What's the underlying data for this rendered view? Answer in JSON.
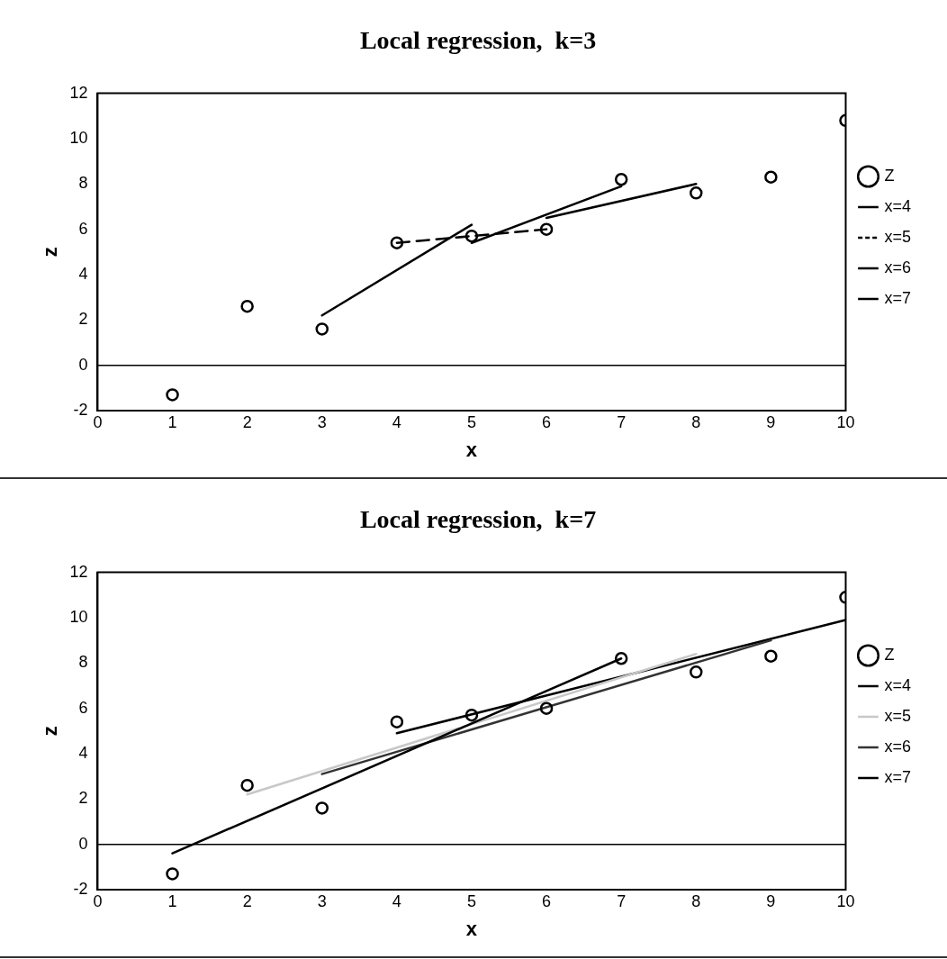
{
  "chart_data": [
    {
      "type": "line",
      "title": "Local regression,  k=3",
      "xlabel": "x",
      "ylabel": "z",
      "xlim": [
        0,
        10
      ],
      "xticks": [
        0,
        1,
        2,
        3,
        4,
        5,
        6,
        7,
        8,
        9,
        10
      ],
      "ylim": [
        -2,
        12
      ],
      "yticks": [
        -2,
        0,
        2,
        4,
        6,
        8,
        10,
        12
      ],
      "grid": false,
      "legend": "right",
      "ref_lines": [
        {
          "axis": "y",
          "value": 0
        }
      ],
      "series": [
        {
          "name": "Z",
          "type": "scatter",
          "marker": "circle",
          "color": "#000000",
          "x": [
            1,
            2,
            3,
            4,
            5,
            6,
            7,
            8,
            9,
            10
          ],
          "values": [
            -1.3,
            2.6,
            1.6,
            5.4,
            5.7,
            6.0,
            8.2,
            7.6,
            8.3,
            10.8
          ]
        },
        {
          "name": "x=4",
          "type": "line",
          "line_style": "solid",
          "color": "#000000",
          "x": [
            3,
            5
          ],
          "values": [
            2.2,
            6.2
          ]
        },
        {
          "name": "x=5",
          "type": "line",
          "line_style": "dashed",
          "color": "#000000",
          "x": [
            4,
            6
          ],
          "values": [
            5.4,
            6.0
          ]
        },
        {
          "name": "x=6",
          "type": "line",
          "line_style": "solid",
          "color": "#000000",
          "x": [
            5,
            7
          ],
          "values": [
            5.4,
            7.9
          ]
        },
        {
          "name": "x=7",
          "type": "line",
          "line_style": "solid",
          "color": "#000000",
          "x": [
            6,
            8
          ],
          "values": [
            6.5,
            8.0
          ]
        }
      ]
    },
    {
      "type": "line",
      "title": "Local regression,  k=7",
      "xlabel": "x",
      "ylabel": "z",
      "xlim": [
        0,
        10
      ],
      "xticks": [
        0,
        1,
        2,
        3,
        4,
        5,
        6,
        7,
        8,
        9,
        10
      ],
      "ylim": [
        -2,
        12
      ],
      "yticks": [
        -2,
        0,
        2,
        4,
        6,
        8,
        10,
        12
      ],
      "grid": false,
      "legend": "right",
      "ref_lines": [
        {
          "axis": "y",
          "value": 0
        }
      ],
      "series": [
        {
          "name": "Z",
          "type": "scatter",
          "marker": "circle",
          "color": "#000000",
          "x": [
            1,
            2,
            3,
            4,
            5,
            6,
            7,
            8,
            9,
            10
          ],
          "values": [
            -1.3,
            2.6,
            1.6,
            5.4,
            5.7,
            6.0,
            8.2,
            7.6,
            8.3,
            10.9
          ]
        },
        {
          "name": "x=4",
          "type": "line",
          "line_style": "solid",
          "color": "#000000",
          "x": [
            1,
            7
          ],
          "values": [
            -0.4,
            8.2
          ]
        },
        {
          "name": "x=5",
          "type": "line",
          "line_style": "solid",
          "color": "#c8c8c8",
          "x": [
            2,
            8
          ],
          "values": [
            2.2,
            8.4
          ]
        },
        {
          "name": "x=6",
          "type": "line",
          "line_style": "solid",
          "color": "#333333",
          "x": [
            3,
            9
          ],
          "values": [
            3.1,
            9.0
          ]
        },
        {
          "name": "x=7",
          "type": "line",
          "line_style": "solid",
          "color": "#000000",
          "x": [
            4,
            10
          ],
          "values": [
            4.9,
            9.9
          ]
        }
      ]
    }
  ]
}
